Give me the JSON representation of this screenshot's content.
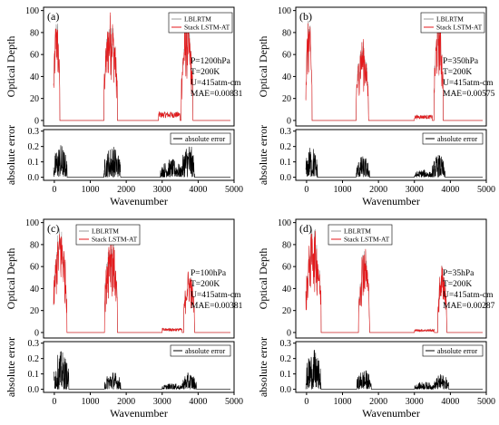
{
  "chart_data": [
    {
      "panel_label": "(a)",
      "type": "line",
      "top": {
        "ylabel": "Optical Depth",
        "xlim": [
          -300,
          5000
        ],
        "ylim": [
          -5,
          103
        ],
        "yticks": [
          0,
          20,
          40,
          60,
          80,
          100
        ],
        "legend": [
          "LBLRTM",
          "Stack LSTM-AT"
        ],
        "legend_position": "top-right",
        "annotation": [
          "P=1200hPa",
          "T=200K",
          "U=415atm-cm",
          "MAE=0.00831"
        ],
        "bands": [
          {
            "x0": -20,
            "x1": 150,
            "peak": 97
          },
          {
            "x0": 1380,
            "x1": 1750,
            "peak": 98
          },
          {
            "x0": 3530,
            "x1": 3850,
            "peak": 93
          }
        ],
        "minor_bands": [
          {
            "x0": 2900,
            "x1": 3500,
            "peak": 8
          }
        ]
      },
      "bottom": {
        "ylabel": "absolute error",
        "xlabel": "Wavenumber",
        "xlim": [
          -300,
          5000
        ],
        "xticks": [
          0,
          1000,
          2000,
          3000,
          4000,
          5000
        ],
        "ylim": [
          -0.02,
          0.31
        ],
        "yticks": [
          0.0,
          0.1,
          0.2,
          0.3
        ],
        "legend": [
          "absolute error"
        ],
        "legend_position": "top-right",
        "bands": [
          {
            "x0": -20,
            "x1": 350,
            "peak": 0.22
          },
          {
            "x0": 1380,
            "x1": 1850,
            "peak": 0.21
          },
          {
            "x0": 2950,
            "x1": 3550,
            "peak": 0.12
          },
          {
            "x0": 3550,
            "x1": 3900,
            "peak": 0.23
          }
        ]
      }
    },
    {
      "panel_label": "(b)",
      "type": "line",
      "top": {
        "ylabel": "Optical Depth",
        "xlim": [
          -300,
          5000
        ],
        "ylim": [
          -5,
          103
        ],
        "yticks": [
          0,
          20,
          40,
          60,
          80,
          100
        ],
        "legend": [
          "LBLRTM",
          "Stack LSTM-AT"
        ],
        "legend_position": "top-right",
        "annotation": [
          "P=350hPa",
          "T=200K",
          "U=415atm-cm",
          "MAE=0.00575"
        ],
        "bands": [
          {
            "x0": -20,
            "x1": 150,
            "peak": 96
          },
          {
            "x0": 1380,
            "x1": 1720,
            "peak": 74
          },
          {
            "x0": 3550,
            "x1": 3800,
            "peak": 98
          }
        ],
        "minor_bands": [
          {
            "x0": 3000,
            "x1": 3500,
            "peak": 5
          }
        ]
      },
      "bottom": {
        "ylabel": "absolute error",
        "xlabel": "Wavenumber",
        "xlim": [
          -300,
          5000
        ],
        "xticks": [
          0,
          1000,
          2000,
          3000,
          4000,
          5000
        ],
        "ylim": [
          -0.02,
          0.31
        ],
        "yticks": [
          0.0,
          0.1,
          0.2,
          0.3
        ],
        "legend": [
          "absolute error"
        ],
        "legend_position": "top-right",
        "bands": [
          {
            "x0": -20,
            "x1": 300,
            "peak": 0.21
          },
          {
            "x0": 1380,
            "x1": 1750,
            "peak": 0.14
          },
          {
            "x0": 3000,
            "x1": 3500,
            "peak": 0.05
          },
          {
            "x0": 3500,
            "x1": 3850,
            "peak": 0.15
          }
        ]
      }
    },
    {
      "panel_label": "(c)",
      "type": "line",
      "top": {
        "ylabel": "Optical Depth",
        "xlim": [
          -300,
          5000
        ],
        "ylim": [
          -5,
          103
        ],
        "yticks": [
          0,
          20,
          40,
          60,
          80,
          100
        ],
        "legend": [
          "LBLRTM",
          "Stack LSTM-AT"
        ],
        "legend_position": "top-left",
        "annotation": [
          "P=100hPa",
          "T=200K",
          "U=415atm-cm",
          "MAE=0.00381"
        ],
        "bands": [
          {
            "x0": -20,
            "x1": 350,
            "peak": 98
          },
          {
            "x0": 1400,
            "x1": 1750,
            "peak": 93
          },
          {
            "x0": 3600,
            "x1": 3900,
            "peak": 57
          }
        ],
        "minor_bands": [
          {
            "x0": 3000,
            "x1": 3550,
            "peak": 4
          }
        ]
      },
      "bottom": {
        "ylabel": "absolute error",
        "xlabel": "Wavenumber",
        "xlim": [
          -300,
          5000
        ],
        "xticks": [
          0,
          1000,
          2000,
          3000,
          4000,
          5000
        ],
        "ylim": [
          -0.02,
          0.31
        ],
        "yticks": [
          0.0,
          0.1,
          0.2,
          0.3
        ],
        "legend": [
          "absolute error"
        ],
        "legend_position": "top-right",
        "bands": [
          {
            "x0": -20,
            "x1": 400,
            "peak": 0.25
          },
          {
            "x0": 1400,
            "x1": 1850,
            "peak": 0.12
          },
          {
            "x0": 3000,
            "x1": 3550,
            "peak": 0.04
          },
          {
            "x0": 3550,
            "x1": 3950,
            "peak": 0.11
          }
        ]
      }
    },
    {
      "panel_label": "(d)",
      "type": "line",
      "top": {
        "ylabel": "Optical Depth",
        "xlim": [
          -300,
          5000
        ],
        "ylim": [
          -5,
          103
        ],
        "yticks": [
          0,
          20,
          40,
          60,
          80,
          100
        ],
        "legend": [
          "LBLRTM",
          "Stack LSTM-AT"
        ],
        "legend_position": "top-left",
        "annotation": [
          "P=35hPa",
          "T=200K",
          "U=415atm-cm",
          "MAE=0.00287"
        ],
        "bands": [
          {
            "x0": -20,
            "x1": 400,
            "peak": 98
          },
          {
            "x0": 1450,
            "x1": 1750,
            "peak": 80
          },
          {
            "x0": 3650,
            "x1": 3900,
            "peak": 63
          }
        ],
        "minor_bands": [
          {
            "x0": 3000,
            "x1": 3550,
            "peak": 3
          }
        ]
      },
      "bottom": {
        "ylabel": "absolute error",
        "xlabel": "Wavenumber",
        "xlim": [
          -300,
          5000
        ],
        "xticks": [
          0,
          1000,
          2000,
          3000,
          4000,
          5000
        ],
        "ylim": [
          -0.02,
          0.31
        ],
        "yticks": [
          0.0,
          0.1,
          0.2,
          0.3
        ],
        "legend": [
          "absolute error"
        ],
        "legend_position": "top-right",
        "bands": [
          {
            "x0": -20,
            "x1": 400,
            "peak": 0.26
          },
          {
            "x0": 1400,
            "x1": 1800,
            "peak": 0.13
          },
          {
            "x0": 3000,
            "x1": 3550,
            "peak": 0.05
          },
          {
            "x0": 3550,
            "x1": 3950,
            "peak": 0.1
          }
        ]
      }
    }
  ],
  "colors": {
    "lblrtm": "#9a9a9a",
    "stack_lstm_at": "#e41a1c",
    "absolute_error": "#000000",
    "axis": "#000000"
  }
}
